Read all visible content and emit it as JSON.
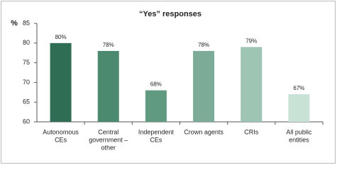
{
  "chart_data": {
    "type": "bar",
    "title": "“Yes” responses",
    "y_label": "%",
    "categories": [
      [
        "Autonomous",
        "CEs"
      ],
      [
        "Central",
        "government –",
        "other"
      ],
      [
        "Independent",
        "CEs"
      ],
      [
        "Crown agents"
      ],
      [
        "CRIs"
      ],
      [
        "All public",
        "entities"
      ]
    ],
    "values": [
      80,
      78,
      68,
      78,
      79,
      67
    ],
    "value_labels": [
      "80%",
      "78%",
      "68%",
      "78%",
      "79%",
      "67%"
    ],
    "colors": [
      "#2f6e55",
      "#4b8a6f",
      "#5f9a81",
      "#7cac97",
      "#9ec4b4",
      "#c9e2d6"
    ],
    "ylim": [
      60,
      85
    ],
    "yticks": [
      60,
      65,
      70,
      75,
      80,
      85
    ]
  }
}
